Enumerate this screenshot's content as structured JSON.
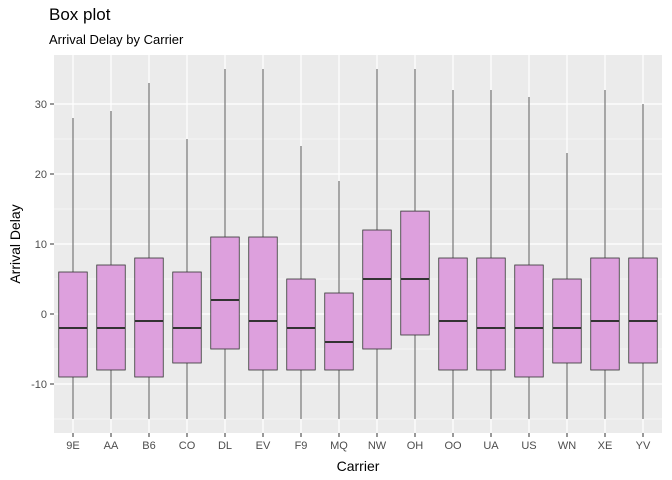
{
  "chart_data": {
    "type": "box",
    "title": "Box plot",
    "subtitle": "Arrival Delay by Carrier",
    "xlabel": "Carrier",
    "ylabel": "Arrival Delay",
    "ylim": [
      -17,
      37
    ],
    "yticks": [
      -10,
      0,
      10,
      20,
      30
    ],
    "grid": true,
    "box_color": "#dda0dd",
    "box_edge_color": "#333333",
    "panel_color": "#ebebeb",
    "categories": [
      "9E",
      "AA",
      "B6",
      "CO",
      "DL",
      "EV",
      "F9",
      "MQ",
      "NW",
      "OH",
      "OO",
      "UA",
      "US",
      "WN",
      "XE",
      "YV"
    ],
    "boxes": [
      {
        "carrier": "9E",
        "min": -15,
        "q1": -9,
        "median": -2,
        "q3": 6,
        "max": 28
      },
      {
        "carrier": "AA",
        "min": -15,
        "q1": -8,
        "median": -2,
        "q3": 7,
        "max": 29
      },
      {
        "carrier": "B6",
        "min": -15,
        "q1": -9,
        "median": -1,
        "q3": 8,
        "max": 33
      },
      {
        "carrier": "CO",
        "min": -15,
        "q1": -7,
        "median": -2,
        "q3": 6,
        "max": 25
      },
      {
        "carrier": "DL",
        "min": -15,
        "q1": -5,
        "median": 2,
        "q3": 11,
        "max": 35
      },
      {
        "carrier": "EV",
        "min": -15,
        "q1": -8,
        "median": -1,
        "q3": 11,
        "max": 35
      },
      {
        "carrier": "F9",
        "min": -15,
        "q1": -8,
        "median": -2,
        "q3": 5,
        "max": 24
      },
      {
        "carrier": "MQ",
        "min": -15,
        "q1": -8,
        "median": -4,
        "q3": 3,
        "max": 19
      },
      {
        "carrier": "NW",
        "min": -15,
        "q1": -5,
        "median": 5,
        "q3": 12,
        "max": 35
      },
      {
        "carrier": "OH",
        "min": -15,
        "q1": -3,
        "median": 5,
        "q3": 14.7,
        "max": 35
      },
      {
        "carrier": "OO",
        "min": -15,
        "q1": -8,
        "median": -1,
        "q3": 8,
        "max": 32
      },
      {
        "carrier": "UA",
        "min": -15,
        "q1": -8,
        "median": -2,
        "q3": 8,
        "max": 32
      },
      {
        "carrier": "US",
        "min": -15,
        "q1": -9,
        "median": -2,
        "q3": 7,
        "max": 31
      },
      {
        "carrier": "WN",
        "min": -15,
        "q1": -7,
        "median": -2,
        "q3": 5,
        "max": 23
      },
      {
        "carrier": "XE",
        "min": -15,
        "q1": -8,
        "median": -1,
        "q3": 8,
        "max": 32
      },
      {
        "carrier": "YV",
        "min": -15,
        "q1": -7,
        "median": -1,
        "q3": 8,
        "max": 30
      }
    ]
  }
}
